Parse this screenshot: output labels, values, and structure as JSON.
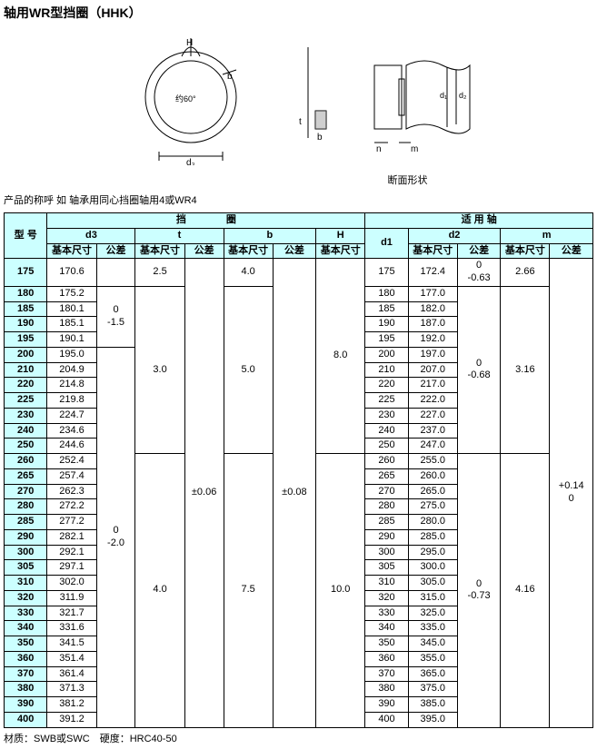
{
  "title": "轴用WR型挡圈（HHK）",
  "diagram_labels": {
    "H": "H",
    "b": "b",
    "angle": "约60°",
    "d3": "d₃",
    "t": "t",
    "d1": "d₁",
    "d2": "d₂",
    "n": "n",
    "m": "m",
    "section": "断面形状"
  },
  "caption": "产品的称呼 如 轴承用同心挡圈轴用4或WR4",
  "headers": {
    "model": "型 号",
    "ring": "挡　　　　圈",
    "shaft": "适 用 轴",
    "d3": "d3",
    "t": "t",
    "b": "b",
    "H": "H",
    "d1": "d1",
    "d2": "d2",
    "m": "m",
    "basic": "基本尺寸",
    "tol": "公差"
  },
  "rows": [
    {
      "m": "175",
      "d3": "170.6",
      "t": "2.5",
      "b": "4.0",
      "d1": "175",
      "d2": "172.4",
      "d2tol": "0\n-0.63",
      "mval": "2.66"
    },
    {
      "m": "180",
      "d3": "175.2",
      "d1": "180",
      "d2": "177.0"
    },
    {
      "m": "185",
      "d3": "180.1",
      "d1": "185",
      "d2": "182.0"
    },
    {
      "m": "190",
      "d3": "185.1",
      "d1": "190",
      "d2": "187.0"
    },
    {
      "m": "195",
      "d3": "190.1",
      "d1": "195",
      "d2": "192.0"
    },
    {
      "m": "200",
      "d3": "195.0",
      "d1": "200",
      "d2": "197.0"
    },
    {
      "m": "210",
      "d3": "204.9",
      "d1": "210",
      "d2": "207.0"
    },
    {
      "m": "220",
      "d3": "214.8",
      "d1": "220",
      "d2": "217.0"
    },
    {
      "m": "225",
      "d3": "219.8",
      "d1": "225",
      "d2": "222.0"
    },
    {
      "m": "230",
      "d3": "224.7",
      "d1": "230",
      "d2": "227.0"
    },
    {
      "m": "240",
      "d3": "234.6",
      "d1": "240",
      "d2": "237.0"
    },
    {
      "m": "250",
      "d3": "244.6",
      "d1": "250",
      "d2": "247.0"
    },
    {
      "m": "260",
      "d3": "252.4",
      "d1": "260",
      "d2": "255.0"
    },
    {
      "m": "265",
      "d3": "257.4",
      "d1": "265",
      "d2": "260.0"
    },
    {
      "m": "270",
      "d3": "262.3",
      "d1": "270",
      "d2": "265.0"
    },
    {
      "m": "280",
      "d3": "272.2",
      "d1": "280",
      "d2": "275.0"
    },
    {
      "m": "285",
      "d3": "277.2",
      "d1": "285",
      "d2": "280.0"
    },
    {
      "m": "290",
      "d3": "282.1",
      "d1": "290",
      "d2": "285.0"
    },
    {
      "m": "300",
      "d3": "292.1",
      "d1": "300",
      "d2": "295.0"
    },
    {
      "m": "305",
      "d3": "297.1",
      "d1": "305",
      "d2": "300.0"
    },
    {
      "m": "310",
      "d3": "302.0",
      "d1": "310",
      "d2": "305.0"
    },
    {
      "m": "320",
      "d3": "311.9",
      "d1": "320",
      "d2": "315.0"
    },
    {
      "m": "330",
      "d3": "321.7",
      "d1": "330",
      "d2": "325.0"
    },
    {
      "m": "340",
      "d3": "331.6",
      "d1": "340",
      "d2": "335.0"
    },
    {
      "m": "350",
      "d3": "341.5",
      "d1": "350",
      "d2": "345.0"
    },
    {
      "m": "360",
      "d3": "351.4",
      "d1": "360",
      "d2": "355.0"
    },
    {
      "m": "370",
      "d3": "361.4",
      "d1": "370",
      "d2": "365.0"
    },
    {
      "m": "380",
      "d3": "371.3",
      "d1": "380",
      "d2": "375.0"
    },
    {
      "m": "390",
      "d3": "381.2",
      "d1": "390",
      "d2": "385.0"
    },
    {
      "m": "400",
      "d3": "391.2",
      "d1": "400",
      "d2": "395.0"
    }
  ],
  "spans": {
    "d3tol_1": "0\n-1.5",
    "d3tol_2": "0\n-2.0",
    "t_2": "3.0",
    "t_3": "4.0",
    "ttol": "±0.06",
    "b_2": "5.0",
    "b_3": "7.5",
    "btol": "±0.08",
    "H_1": "8.0",
    "H_2": "10.0",
    "d2tol_2": "0\n-0.68",
    "d2tol_3": "0\n-0.73",
    "m_2": "3.16",
    "m_3": "4.16",
    "mtol": "+0.14\n0"
  },
  "footer": "材质：SWB或SWC　硬度：HRC40-50"
}
